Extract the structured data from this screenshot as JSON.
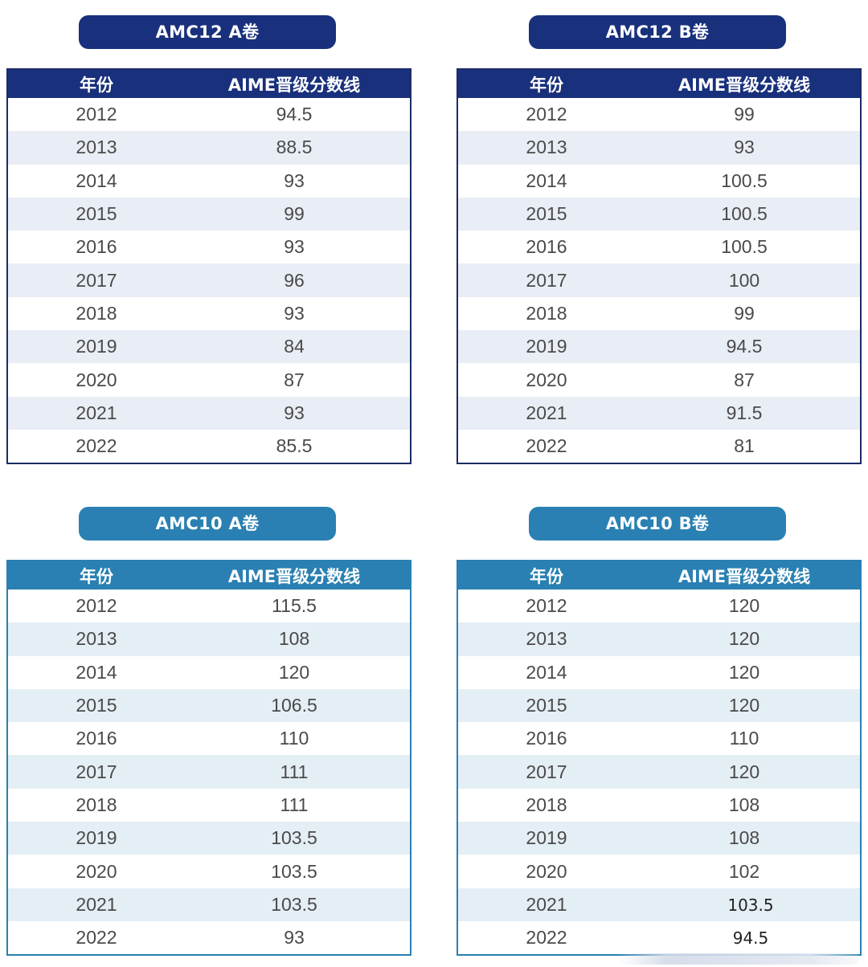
{
  "tables": [
    {
      "title": "AMC12 A卷",
      "headers": [
        "年份",
        "AIME晋级分数线"
      ],
      "rows": [
        [
          "2012",
          "94.5"
        ],
        [
          "2013",
          "88.5"
        ],
        [
          "2014",
          "93"
        ],
        [
          "2015",
          "99"
        ],
        [
          "2016",
          "93"
        ],
        [
          "2017",
          "96"
        ],
        [
          "2018",
          "93"
        ],
        [
          "2019",
          "84"
        ],
        [
          "2020",
          "87"
        ],
        [
          "2021",
          "93"
        ],
        [
          "2022",
          "85.5"
        ]
      ]
    },
    {
      "title": "AMC12 B卷",
      "headers": [
        "年份",
        "AIME晋级分数线"
      ],
      "rows": [
        [
          "2012",
          "99"
        ],
        [
          "2013",
          "93"
        ],
        [
          "2014",
          "100.5"
        ],
        [
          "2015",
          "100.5"
        ],
        [
          "2016",
          "100.5"
        ],
        [
          "2017",
          "100"
        ],
        [
          "2018",
          "99"
        ],
        [
          "2019",
          "94.5"
        ],
        [
          "2020",
          "87"
        ],
        [
          "2021",
          "91.5"
        ],
        [
          "2022",
          "81"
        ]
      ]
    },
    {
      "title": "AMC10 A卷",
      "headers": [
        "年份",
        "AIME晋级分数线"
      ],
      "rows": [
        [
          "2012",
          "115.5"
        ],
        [
          "2013",
          "108"
        ],
        [
          "2014",
          "120"
        ],
        [
          "2015",
          "106.5"
        ],
        [
          "2016",
          "110"
        ],
        [
          "2017",
          "111"
        ],
        [
          "2018",
          "111"
        ],
        [
          "2019",
          "103.5"
        ],
        [
          "2020",
          "103.5"
        ],
        [
          "2021",
          "103.5"
        ],
        [
          "2022",
          "93"
        ]
      ]
    },
    {
      "title": "AMC10 B卷",
      "headers": [
        "年份",
        "AIME晋级分数线"
      ],
      "rows": [
        [
          "2012",
          "120"
        ],
        [
          "2013",
          "120"
        ],
        [
          "2014",
          "120"
        ],
        [
          "2015",
          "120"
        ],
        [
          "2016",
          "110"
        ],
        [
          "2017",
          "120"
        ],
        [
          "2018",
          "108"
        ],
        [
          "2019",
          "108"
        ],
        [
          "2020",
          "102"
        ],
        [
          "2021",
          "103.5"
        ],
        [
          "2022",
          "94.5"
        ]
      ]
    }
  ],
  "colors": {
    "amc12": "#19307c",
    "amc10": "#2a80b2",
    "stripe_amc12": "#e9edf5",
    "stripe_amc10": "#e4eef5"
  }
}
